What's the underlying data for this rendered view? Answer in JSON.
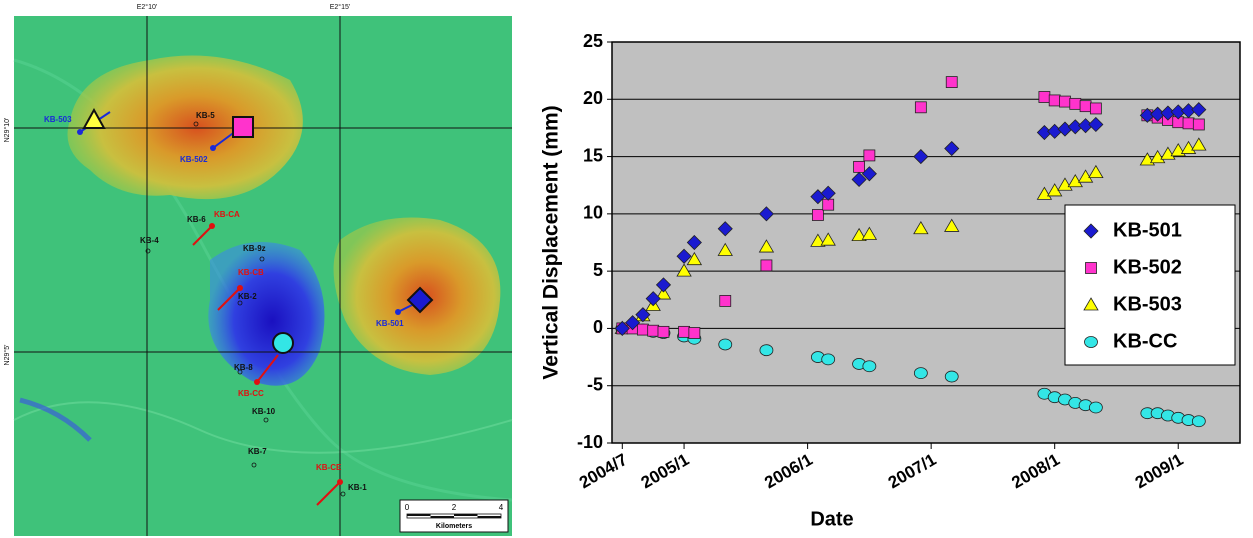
{
  "map": {
    "coords": [
      "E2°10'",
      "E2°15'",
      "N29°10'",
      "N29°5'"
    ],
    "wells": [
      "KB-503",
      "KB-5",
      "KB-502",
      "KB-6",
      "KB-CA",
      "KB-4",
      "KB-9z",
      "KB-CB",
      "KB-2",
      "KB-501",
      "KB-8",
      "KB-CC",
      "KB-10",
      "KB-7",
      "KB-CE",
      "KB-1"
    ],
    "scale": [
      "0",
      "2",
      "4",
      "Kilometers"
    ]
  },
  "chart_data": {
    "type": "scatter",
    "xlabel": "Date",
    "ylabel": "Vertical Displacement (mm)",
    "x": [
      "2004/7",
      "2004/8",
      "2004/9",
      "2004/10",
      "2004/11",
      "2005/1",
      "2005/2",
      "2005/5",
      "2005/9",
      "2006/2",
      "2006/3",
      "2006/6",
      "2006/7",
      "2006/12",
      "2007/3",
      "2007/12",
      "2008/1",
      "2008/2",
      "2008/3",
      "2008/4",
      "2008/5",
      "2008/10",
      "2008/11",
      "2008/12",
      "2009/1",
      "2009/2",
      "2009/3"
    ],
    "xlim": [
      "2004/6",
      "2009/7"
    ],
    "xticks": [
      "2004/7",
      "2005/1",
      "2006/1",
      "2007/1",
      "2008/1",
      "2009/1"
    ],
    "ylim": [
      -10,
      25
    ],
    "yticks": [
      -10,
      -5,
      0,
      5,
      10,
      15,
      20,
      25
    ],
    "grid": true,
    "legend": "right",
    "series": [
      {
        "name": "KB-501",
        "color": "#1a1ad0",
        "marker": "diamond",
        "values": [
          0,
          0.5,
          1.2,
          2.6,
          3.8,
          6.3,
          7.5,
          8.7,
          10.0,
          11.5,
          11.8,
          13.0,
          13.5,
          15.0,
          15.7,
          17.1,
          17.2,
          17.4,
          17.6,
          17.7,
          17.8,
          18.6,
          18.7,
          18.8,
          18.9,
          19.0,
          19.1
        ]
      },
      {
        "name": "KB-502",
        "color": "#ff33cc",
        "marker": "square",
        "values": [
          0,
          0,
          -0.1,
          -0.2,
          -0.3,
          -0.3,
          -0.4,
          2.4,
          5.5,
          9.9,
          10.8,
          14.1,
          15.1,
          19.3,
          21.5,
          20.2,
          19.9,
          19.8,
          19.6,
          19.4,
          19.2,
          18.6,
          18.4,
          18.2,
          18.0,
          17.9,
          17.8
        ]
      },
      {
        "name": "KB-503",
        "color": "#ffff00",
        "marker": "triangle",
        "values": [
          0,
          0.4,
          1.1,
          2.0,
          3.0,
          5.0,
          6.0,
          6.8,
          7.1,
          7.6,
          7.7,
          8.1,
          8.2,
          8.7,
          8.9,
          11.7,
          12.0,
          12.5,
          12.8,
          13.2,
          13.6,
          14.7,
          14.9,
          15.2,
          15.5,
          15.7,
          16.0
        ]
      },
      {
        "name": "KB-CC",
        "color": "#33e6e6",
        "marker": "circle",
        "values": [
          0,
          0.1,
          -0.1,
          -0.3,
          -0.4,
          -0.7,
          -0.9,
          -1.4,
          -1.9,
          -2.5,
          -2.7,
          -3.1,
          -3.3,
          -3.9,
          -4.2,
          -5.7,
          -6.0,
          -6.2,
          -6.5,
          -6.7,
          -6.9,
          -7.4,
          -7.4,
          -7.6,
          -7.8,
          -8.0,
          -8.1
        ]
      }
    ]
  }
}
